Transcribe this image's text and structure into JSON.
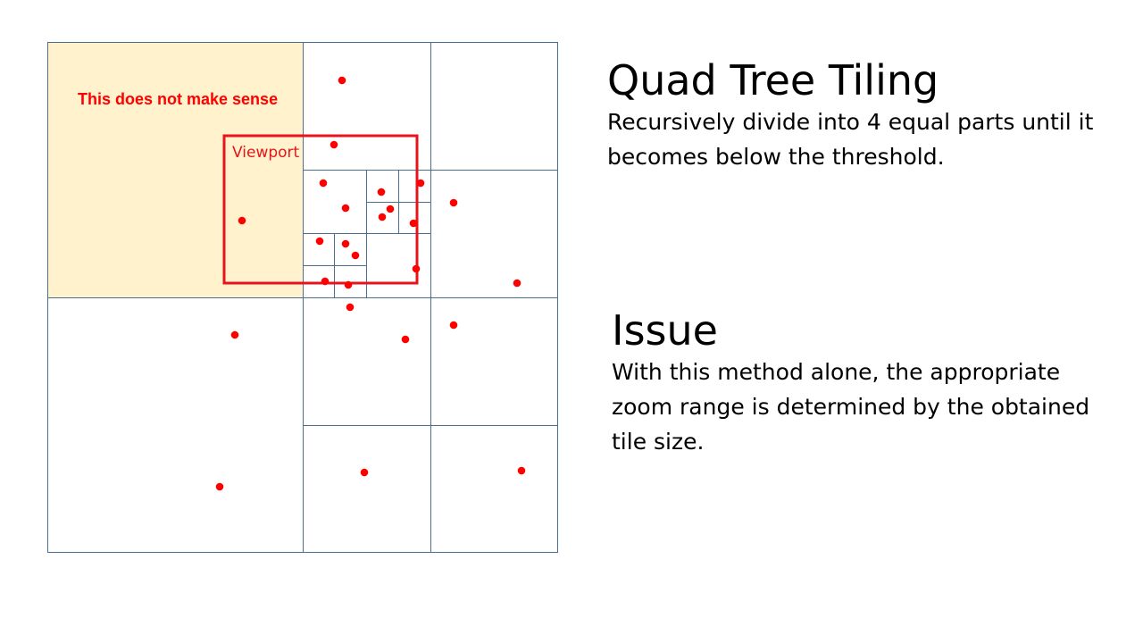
{
  "slide": {
    "title": "Quad Tree Tiling",
    "description": "Recursively divide into 4 equal parts until it becomes below the threshold.",
    "issue_title": "Issue",
    "issue_text": "With this method alone, the appropriate zoom range is determined by the obtained tile size."
  },
  "diagram": {
    "annotation": "This does not make sense",
    "viewport_label": "Viewport",
    "colors": {
      "grid_line": "#4a6f91",
      "highlight_fill": "#fff2cc",
      "points": "#ff0000",
      "viewport": "#e8141b",
      "annotation": "#ff0000"
    }
  }
}
